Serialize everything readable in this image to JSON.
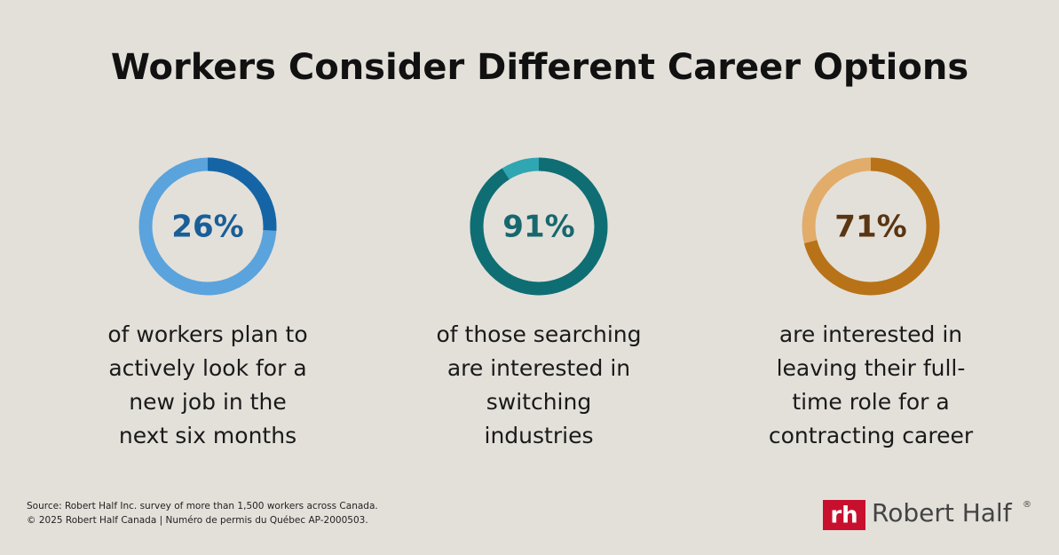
{
  "title": "Workers Consider Different Career Options",
  "chart_data": [
    {
      "type": "donut",
      "values": [
        26
      ],
      "value_labels": [
        "26%"
      ],
      "color": "#1565a6",
      "track_color": "#5ba3dc",
      "label_color": "#1a5e98",
      "caption_lines": [
        "of workers plan to",
        "actively look for a",
        "new job in the",
        "next six months"
      ]
    },
    {
      "type": "donut",
      "values": [
        91
      ],
      "value_labels": [
        "91%"
      ],
      "color": "#0f6e73",
      "track_color": "#2fa6b2",
      "label_color": "#17686e",
      "caption_lines": [
        "of those searching",
        "are interested in",
        "switching",
        "industries"
      ]
    },
    {
      "type": "donut",
      "values": [
        71
      ],
      "value_labels": [
        "71%"
      ],
      "color": "#b87318",
      "track_color": "#e2ac6a",
      "label_color": "#5a3512",
      "caption_lines": [
        "are interested in",
        "leaving their full-",
        "time role for a",
        "contracting career"
      ]
    }
  ],
  "footer": {
    "source": "Source: Robert Half Inc. survey of more than 1,500 workers across Canada.",
    "copyright": "© 2025 Robert Half Canada | Numéro de permis du Québec AP-2000503."
  },
  "logo": {
    "mark": "rh",
    "name": "Robert Half",
    "registered": "®"
  }
}
